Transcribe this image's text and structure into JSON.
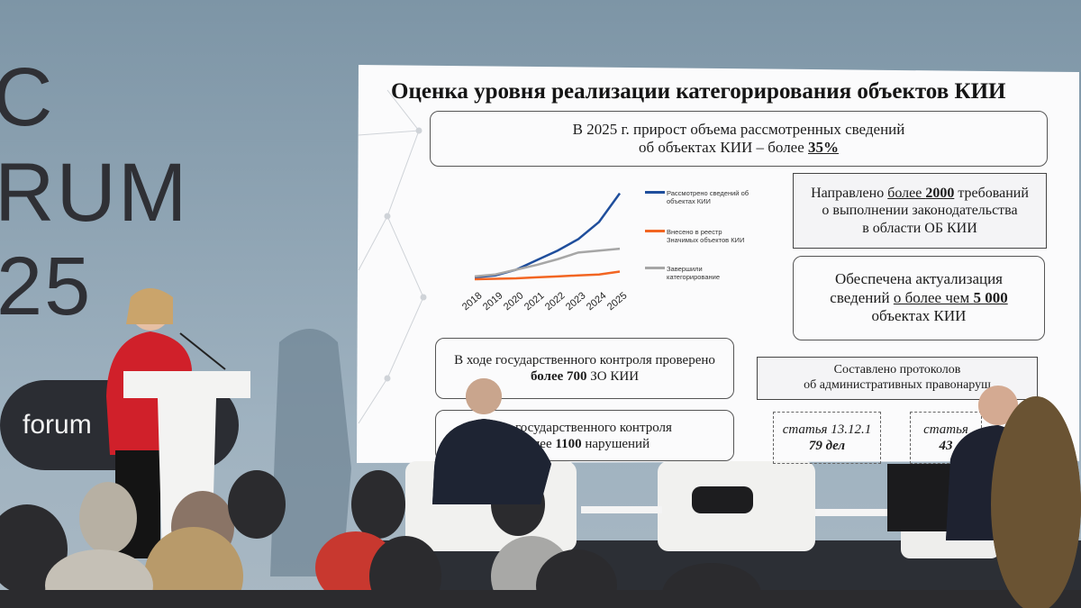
{
  "backdrop": {
    "letters": [
      "C",
      "RUM",
      "25"
    ],
    "logo": "forum"
  },
  "slide": {
    "title": "Оценка уровня реализации категорирования объектов КИИ",
    "chart": {
      "type": "line",
      "categories": [
        "2018",
        "2019",
        "2020",
        "2021",
        "2022",
        "2023",
        "2024",
        "2025"
      ],
      "series": [
        {
          "name": "Рассмотрено сведений об объектах КИИ",
          "color": "#1f4e9c",
          "values": [
            12,
            14,
            20,
            30,
            40,
            52,
            70,
            100
          ]
        },
        {
          "name": "Внесено в реестр Значимых объектов КИИ",
          "color": "#f26522",
          "values": [
            10,
            10.5,
            11,
            12,
            13,
            14,
            15,
            18
          ]
        },
        {
          "name": "Завершили категорирование",
          "color": "#a6a6a6",
          "values": [
            13,
            15,
            20,
            25,
            31,
            38,
            40,
            42
          ]
        }
      ]
    },
    "boxes": [
      {
        "style": "rounded",
        "lines": [
          [
            {
              "text": "В 2025 г. прирост объема рассмотренных сведений"
            }
          ],
          [
            {
              "text": "об объектах КИИ – более "
            },
            {
              "text": "35%",
              "bold": true,
              "underline": true
            }
          ]
        ]
      },
      {
        "style": "square",
        "lines": [
          [
            {
              "text": "Направлено "
            },
            {
              "text": "более ",
              "underline": true
            },
            {
              "text": "2000",
              "bold": true,
              "underline": true
            },
            {
              "text": " требований"
            }
          ],
          [
            {
              "text": "о выполнении законодательства"
            }
          ],
          [
            {
              "text": "в области ОБ КИИ"
            }
          ]
        ]
      },
      {
        "style": "rounded",
        "lines": [
          [
            {
              "text": "Обеспечена актуализация"
            }
          ],
          [
            {
              "text": "сведений "
            },
            {
              "text": "о более чем ",
              "underline": true
            },
            {
              "text": "5 000",
              "bold": true,
              "underline": true
            }
          ],
          [
            {
              "text": "объектах КИИ"
            }
          ]
        ]
      },
      {
        "style": "rounded",
        "lines": [
          [
            {
              "text": "В ходе государственного контроля проверено"
            }
          ],
          [
            {
              "text": "более 700",
              "bold": true
            },
            {
              "text": " ЗО КИИ"
            }
          ]
        ]
      },
      {
        "style": "rounded",
        "lines": [
          [
            {
              "text": "ам государственного контроля"
            }
          ],
          [
            {
              "text": "более "
            },
            {
              "text": "1100",
              "bold": true
            },
            {
              "text": " нарушений"
            }
          ]
        ]
      },
      {
        "style": "square",
        "lines": [
          [
            {
              "text": "Составлено протоколов"
            }
          ],
          [
            {
              "text": "об административных правонаруш"
            }
          ]
        ]
      },
      {
        "style": "dashed",
        "lines": [
          [
            {
              "text": "статья 13.12.1"
            }
          ],
          [
            {
              "text": "79 дел",
              "bold": true
            }
          ]
        ]
      },
      {
        "style": "dashed",
        "lines": [
          [
            {
              "text": "статья"
            }
          ],
          [
            {
              "text": "43",
              "bold": true
            }
          ]
        ]
      }
    ]
  }
}
